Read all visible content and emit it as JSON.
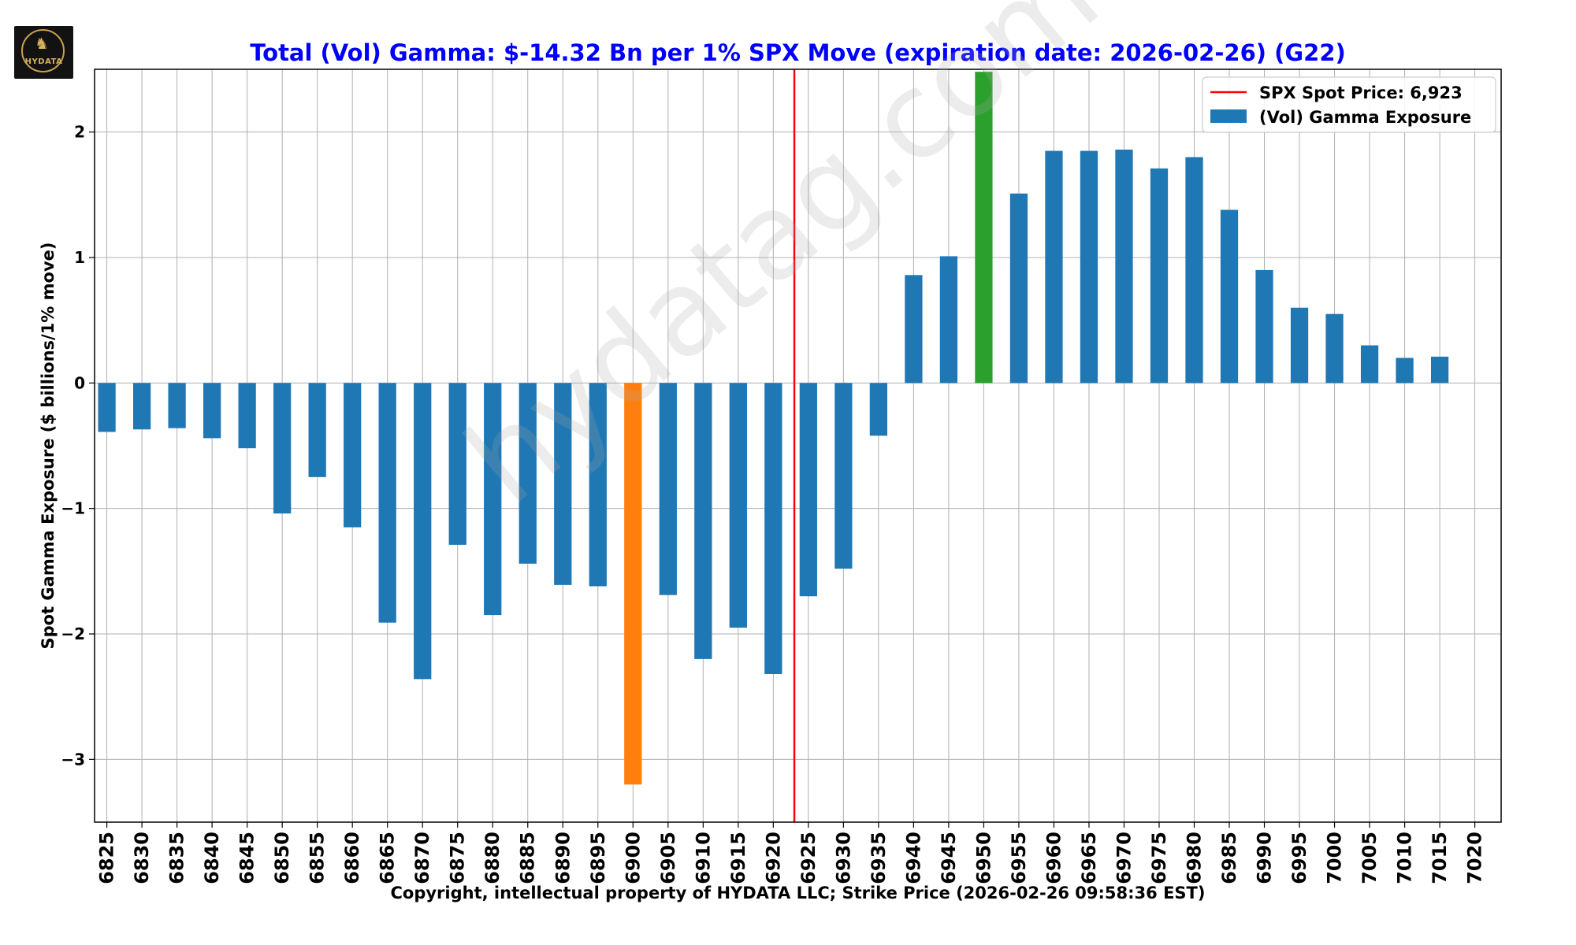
{
  "logo": {
    "text": "HYDATA",
    "icon": "bull-icon"
  },
  "watermark": "hydatag.com",
  "colors": {
    "title": "#0000ff",
    "bar": "#1f77b4",
    "bar_min": "#ff7f0e",
    "bar_max": "#2ca02c",
    "spot_line": "#ff0000",
    "grid": "#b0b0b0"
  },
  "chart_data": {
    "type": "bar",
    "title": "Total (Vol) Gamma: $-14.32 Bn per 1% SPX Move (expiration date: 2026-02-26) (G22)",
    "xlabel": "Copyright, intellectual property of HYDATA LLC; Strike Price (2026-02-26 09:58:36 EST)",
    "ylabel": "Spot Gamma Exposure ($ billions/1% move)",
    "ylim": [
      -3.5,
      2.5
    ],
    "yticks": [
      -3,
      -2,
      -1,
      0,
      1,
      2
    ],
    "ytick_labels": [
      "−3",
      "−2",
      "−1",
      "0",
      "1",
      "2"
    ],
    "grid": true,
    "legend_position": "top-right",
    "legend": [
      "SPX Spot Price: 6,923",
      "(Vol) Gamma Exposure"
    ],
    "spot_price": 6923,
    "categories": [
      "6825",
      "6830",
      "6835",
      "6840",
      "6845",
      "6850",
      "6855",
      "6860",
      "6865",
      "6870",
      "6875",
      "6880",
      "6885",
      "6890",
      "6895",
      "6900",
      "6905",
      "6910",
      "6915",
      "6920",
      "6925",
      "6930",
      "6935",
      "6940",
      "6945",
      "6950",
      "6955",
      "6960",
      "6965",
      "6970",
      "6975",
      "6980",
      "6985",
      "6990",
      "6995",
      "7000",
      "7005",
      "7010",
      "7015",
      "7020"
    ],
    "values": [
      -0.39,
      -0.37,
      -0.36,
      -0.44,
      -0.52,
      -1.04,
      -0.75,
      -1.15,
      -1.91,
      -2.36,
      -1.29,
      -1.85,
      -1.44,
      -1.61,
      -1.62,
      -3.2,
      -1.69,
      -2.2,
      -1.95,
      -2.32,
      -1.7,
      -1.48,
      -0.42,
      0.86,
      1.01,
      2.48,
      1.51,
      1.85,
      1.85,
      1.86,
      1.71,
      1.8,
      1.38,
      0.9,
      0.6,
      0.55,
      0.3,
      0.2,
      0.21,
      0
    ],
    "highlight_min_index": 15,
    "highlight_max_index": 25
  }
}
